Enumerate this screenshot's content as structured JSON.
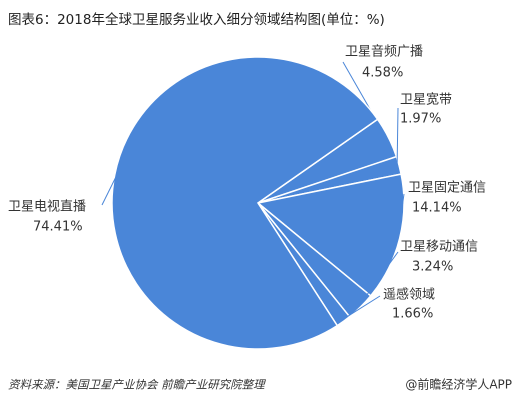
{
  "chart_data": {
    "type": "pie",
    "title": "图表6：2018年全球卫星服务业收入细分领域结构图(单位：%)",
    "categories": [
      "卫星音频广播",
      "卫星宽带",
      "卫星固定通信",
      "卫星移动通信",
      "遥感领域",
      "卫星电视直播"
    ],
    "values": [
      4.58,
      1.97,
      14.14,
      3.24,
      1.66,
      74.41
    ],
    "value_labels": [
      "4.58%",
      "1.97%",
      "14.14%",
      "3.24%",
      "1.66%",
      "74.41%"
    ],
    "color": "#4a86d8"
  },
  "source": "资料来源：美国卫星产业协会 前瞻产业研究院整理",
  "footer": "@前瞻经济学人APP"
}
